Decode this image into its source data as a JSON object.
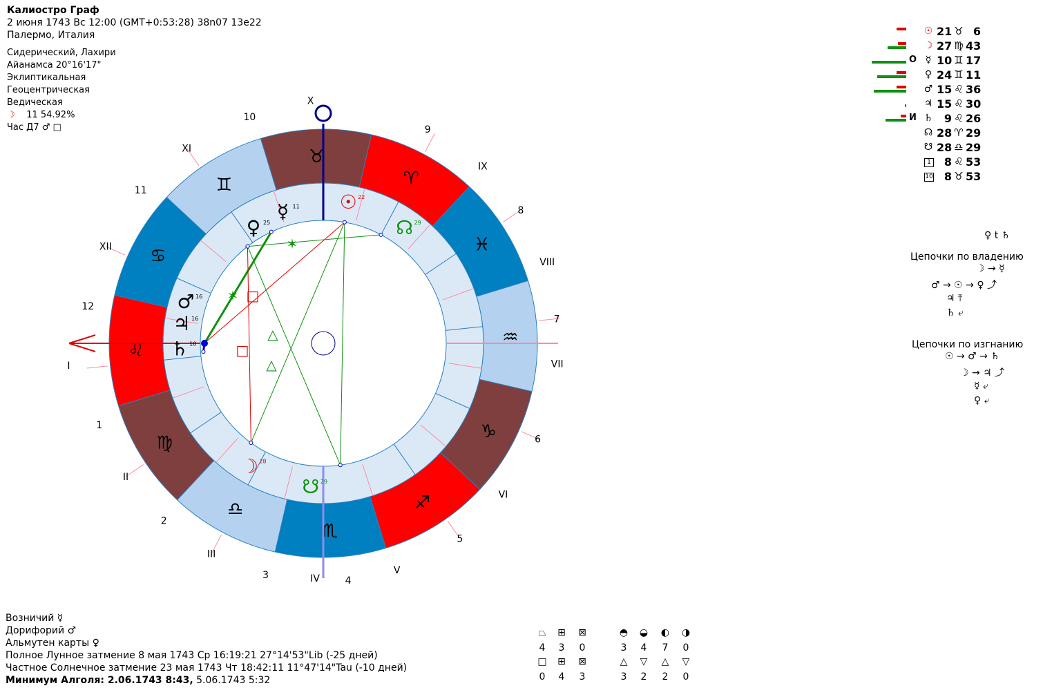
{
  "header": {
    "name": "Калиостро Граф",
    "datetime": "2 июня 1743  Вс  12:00 (GMT+0:53:28) 38n07  13e22",
    "place": "Палермо, Италия"
  },
  "settings": {
    "zodiac": "Сидерический, Лахири",
    "ayanamsa": "Айанамса 20°16'17\"",
    "coords": "Эклиптикальная",
    "center": "Геоцентрическая",
    "system": "Ведическая",
    "moon_phase_glyph": "☽",
    "moon_phase": "11 54.92%",
    "hour": "Час Д7",
    "hour_glyph1": "♂",
    "hour_glyph2": "□"
  },
  "chart": {
    "angles": {
      "asc": "I",
      "desc": "VII",
      "mc": "X",
      "ic": "IV"
    },
    "house_labels": [
      {
        "label": "X",
        "role": "mc"
      },
      {
        "label": "9"
      },
      {
        "label": "IX"
      },
      {
        "label": "8"
      },
      {
        "label": "VIII"
      },
      {
        "label": "7"
      },
      {
        "label": "VII"
      },
      {
        "label": "6"
      },
      {
        "label": "VI"
      },
      {
        "label": "5"
      },
      {
        "label": "V"
      },
      {
        "label": "4"
      },
      {
        "label": "IV"
      },
      {
        "label": "3"
      },
      {
        "label": "III"
      },
      {
        "label": "2"
      },
      {
        "label": "II"
      },
      {
        "label": "1"
      },
      {
        "label": "I"
      },
      {
        "label": "12"
      },
      {
        "label": "XII"
      },
      {
        "label": "11"
      },
      {
        "label": "XI"
      },
      {
        "label": "10"
      }
    ],
    "signs": [
      {
        "glyph": "♉",
        "color": "#7f3f3f"
      },
      {
        "glyph": "♈",
        "color": "#ff0000"
      },
      {
        "glyph": "♓",
        "color": "#0080c0"
      },
      {
        "glyph": "♒",
        "color": "#b4d2f0"
      },
      {
        "glyph": "♑",
        "color": "#7f3f3f"
      },
      {
        "glyph": "♐",
        "color": "#ff0000"
      },
      {
        "glyph": "♏",
        "color": "#0080c0"
      },
      {
        "glyph": "♎",
        "color": "#b4d2f0"
      },
      {
        "glyph": "♍",
        "color": "#7f3f3f"
      },
      {
        "glyph": "♌",
        "color": "#ff0000"
      },
      {
        "glyph": "♋",
        "color": "#0080c0"
      },
      {
        "glyph": "♊",
        "color": "#b4d2f0"
      }
    ],
    "planets": [
      {
        "name": "sun",
        "glyph": "☉",
        "deg": "22",
        "color": "#e00000"
      },
      {
        "name": "north-node",
        "glyph": "☊",
        "deg": "29",
        "color": "#109010"
      },
      {
        "name": "mercury",
        "glyph": "☿",
        "deg": "11",
        "color": "#000000"
      },
      {
        "name": "venus",
        "glyph": "♀",
        "deg": "25",
        "color": "#000000"
      },
      {
        "name": "saturn",
        "glyph": "♄",
        "deg": "10",
        "color": "#000000"
      },
      {
        "name": "jupiter",
        "glyph": "♃",
        "deg": "16",
        "color": "#000000"
      },
      {
        "name": "mars",
        "glyph": "♂",
        "deg": "16",
        "color": "#000000"
      },
      {
        "name": "moon",
        "glyph": "☽",
        "deg": "28",
        "color": "#e00000"
      },
      {
        "name": "south-node",
        "glyph": "☋",
        "deg": "29",
        "color": "#109010"
      }
    ],
    "aspects": [
      {
        "glyph": "✶",
        "color": "#109010"
      },
      {
        "glyph": "✶",
        "color": "#109010"
      },
      {
        "glyph": "□",
        "color": "#e00000"
      },
      {
        "glyph": "△",
        "color": "#109010"
      },
      {
        "glyph": "□",
        "color": "#e00000"
      },
      {
        "glyph": "△",
        "color": "#109010"
      }
    ]
  },
  "planet_table": [
    {
      "glyph": "☉",
      "glyph_color": "#e00000",
      "deg": "21",
      "sign": "♉",
      "min": "6",
      "flag": "",
      "red": 0.35,
      "green": 0
    },
    {
      "glyph": "☽",
      "glyph_color": "#e00000",
      "deg": "27",
      "sign": "♍",
      "min": "43",
      "flag": "",
      "red": 0.3,
      "green": 0.55
    },
    {
      "glyph": "☿",
      "glyph_color": "#000000",
      "deg": "10",
      "sign": "♊",
      "min": "17",
      "flag": "O",
      "red": 0,
      "green": 1.0
    },
    {
      "glyph": "♀",
      "glyph_color": "#000000",
      "deg": "24",
      "sign": "♊",
      "min": "11",
      "flag": "",
      "red": 0.35,
      "green": 0.85
    },
    {
      "glyph": "♂",
      "glyph_color": "#000000",
      "deg": "15",
      "sign": "♌",
      "min": "36",
      "flag": "",
      "red": 0.35,
      "green": 0.95
    },
    {
      "glyph": "♃",
      "glyph_color": "#000000",
      "deg": "15",
      "sign": "♌",
      "min": "30",
      "flag": "",
      "red": 0,
      "green": 0.05
    },
    {
      "glyph": "♄",
      "glyph_color": "#000000",
      "deg": "9",
      "sign": "♌",
      "min": "26",
      "flag": "И",
      "red": 0.2,
      "green": 0.6
    },
    {
      "glyph": "☊",
      "glyph_color": "#000000",
      "deg": "28",
      "sign": "♈",
      "min": "29",
      "flag": "",
      "red": 0,
      "green": 0
    },
    {
      "glyph": "☋",
      "glyph_color": "#000000",
      "deg": "28",
      "sign": "♎",
      "min": "29",
      "flag": "",
      "red": 0,
      "green": 0
    },
    {
      "glyph": "1",
      "glyph_color": "#000000",
      "deg": "8",
      "sign": "♌",
      "min": "53",
      "flag": "",
      "red": 0,
      "green": 0
    },
    {
      "glyph": "10",
      "glyph_color": "#000000",
      "deg": "8",
      "sign": "♉",
      "min": "53",
      "flag": "",
      "red": 0,
      "green": 0
    }
  ],
  "chains": {
    "top_pair": "♀ t ♄",
    "ownership_title": "Цепочки по владению",
    "ownership_lines": [
      "☽ → ☿",
      "♂ → ☉ → ♀ ⤴",
      "♃ ⤒",
      "♄ ⤶"
    ],
    "exile_title": "Цепочки по изгнанию",
    "exile_lines": [
      "☉ → ♂ → ♄",
      "☽ → ♃ ⤴",
      "☿ ⤶",
      "♀ ⤶"
    ]
  },
  "bottom": {
    "charioteer": "Возничий",
    "charioteer_glyph": "☿",
    "doryphory": "Дорифорий",
    "doryphory_glyph": "♂",
    "almuten": "Альмутен карты",
    "almuten_glyph": "♀",
    "lunar_eclipse": "Полное Лунное затмение 8 мая 1743 Ср 16:19:21 27°14'53\"Lib (-25 дней)",
    "solar_eclipse": "Частное Солнечное затмение 23 мая 1743 Чт 18:42:11 11°47'14\"Tau (-10 дней)",
    "algol_bold": "Минимум Алголя: 2.06.1743  8:43,",
    "algol_rest": " 5.06.1743  5:32"
  },
  "counts": {
    "row1_glyphs": [
      "⏢",
      "⊞",
      "⊠",
      "◓",
      "◒",
      "◐",
      "◑"
    ],
    "row1_values": [
      "4",
      "3",
      "0",
      "3",
      "4",
      "7",
      "0"
    ],
    "row2_glyphs": [
      "□",
      "⊞",
      "⊠",
      "△",
      "▽",
      "△",
      "▽"
    ],
    "row2_values": [
      "0",
      "4",
      "3",
      "3",
      "2",
      "2",
      "0"
    ]
  }
}
